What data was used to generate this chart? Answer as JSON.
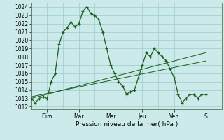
{
  "bg_color": "#cceaea",
  "grid_color": "#99cccc",
  "line_color": "#1a5c1a",
  "ylabel": "Pression niveau de la mer( hPa )",
  "ylim": [
    1012,
    1024.5
  ],
  "yticks": [
    1012,
    1013,
    1014,
    1015,
    1016,
    1017,
    1018,
    1019,
    1020,
    1021,
    1022,
    1023,
    1024
  ],
  "day_labels": [
    "Dim",
    "Mar",
    "Mer",
    "Jeu",
    "Ven",
    "S"
  ],
  "day_x": [
    24,
    72,
    120,
    168,
    216,
    264
  ],
  "xlim_hours": [
    0,
    288
  ],
  "series1_x": [
    0,
    6,
    12,
    18,
    24,
    30,
    36,
    42,
    48,
    54,
    60,
    66,
    72,
    78,
    84,
    90,
    96,
    102,
    108,
    114,
    120,
    126,
    132,
    138,
    144,
    150,
    156,
    162,
    168,
    174,
    180,
    186,
    192,
    198,
    204,
    210,
    216,
    222,
    228,
    234,
    240,
    246,
    252,
    258,
    264
  ],
  "series1_y": [
    1013.0,
    1012.5,
    1013.0,
    1013.2,
    1013.0,
    1015.0,
    1016.0,
    1019.5,
    1021.0,
    1021.5,
    1022.2,
    1021.6,
    1022.0,
    1023.5,
    1024.0,
    1023.2,
    1023.0,
    1022.5,
    1021.0,
    1019.0,
    1017.0,
    1016.0,
    1015.0,
    1014.5,
    1013.5,
    1013.8,
    1014.0,
    1015.5,
    1017.0,
    1018.5,
    1018.0,
    1019.0,
    1018.5,
    1018.0,
    1017.5,
    1016.5,
    1015.5,
    1013.5,
    1012.5,
    1013.0,
    1013.5,
    1013.5,
    1013.0,
    1013.5,
    1013.5
  ],
  "flat_line_x": [
    0,
    264
  ],
  "flat_line_y": [
    1013.0,
    1013.0
  ],
  "trend1_x": [
    0,
    264
  ],
  "trend1_y": [
    1013.0,
    1018.5
  ],
  "trend2_x": [
    0,
    264
  ],
  "trend2_y": [
    1013.2,
    1017.5
  ],
  "ylabel_fontsize": 6.5,
  "tick_fontsize": 5.5
}
